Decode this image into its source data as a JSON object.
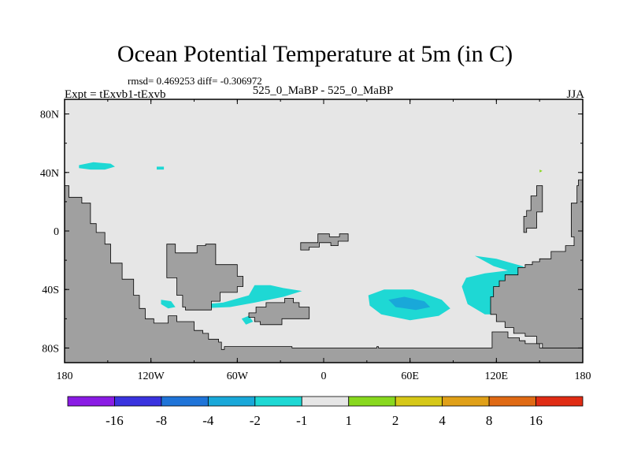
{
  "chart_data": {
    "type": "heatmap",
    "title": "Ocean Potential Temperature at 5m (in C)",
    "stats": "rmsd= 0.469253 diff= -0.306972",
    "left_label": "Expt = tExvb1-tExvb",
    "center_label": "525_0_MaBP - 525_0_MaBP",
    "right_label": "JJA",
    "x_range": [
      -180,
      180
    ],
    "y_range": [
      -90,
      90
    ],
    "x_ticks": [
      {
        "value": -180,
        "label": "180"
      },
      {
        "value": -120,
        "label": "120W"
      },
      {
        "value": -60,
        "label": "60W"
      },
      {
        "value": 0,
        "label": "0"
      },
      {
        "value": 60,
        "label": "60E"
      },
      {
        "value": 120,
        "label": "120E"
      },
      {
        "value": 180,
        "label": "180"
      }
    ],
    "y_ticks": [
      {
        "value": 80,
        "label": "80N"
      },
      {
        "value": 40,
        "label": "40N"
      },
      {
        "value": 0,
        "label": "0"
      },
      {
        "value": -40,
        "label": "40S"
      },
      {
        "value": -80,
        "label": "80S"
      }
    ],
    "colorbar": {
      "colors": [
        "#8a1ce4",
        "#3a33df",
        "#1f74d8",
        "#19a8d9",
        "#1ed8d4",
        "#e6e6e6",
        "#88d81e",
        "#d6c818",
        "#e0a018",
        "#e06a14",
        "#e02c14"
      ],
      "labels": [
        "-16",
        "-8",
        "-4",
        "-2",
        "-1",
        "1",
        "2",
        "4",
        "8",
        "16"
      ]
    },
    "colors": {
      "ocean_neutral": "#e6e6e6",
      "land": "#a0a0a0",
      "anomaly_minus1_to_minus2": "#1ed8d4",
      "anomaly_minus2_to_minus4": "#19a8d9",
      "anomaly_1_to_2": "#88d81e"
    }
  }
}
